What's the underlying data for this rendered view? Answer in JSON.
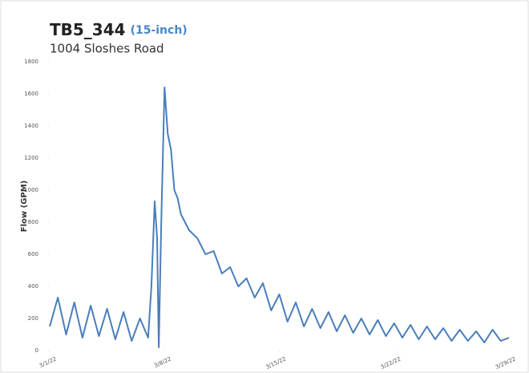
{
  "chart_data": {
    "type": "line",
    "title": "TB5_344",
    "title_note": "(15-inch)",
    "subtitle": "1004 Sloshes Road",
    "y_label": "Flow (GPM)",
    "xlim": [
      0,
      28
    ],
    "xticks": [
      {
        "value": 0,
        "label": "3/1/22"
      },
      {
        "value": 7,
        "label": "3/8/22"
      },
      {
        "value": 14,
        "label": "3/15/22"
      },
      {
        "value": 21,
        "label": "3/22/22"
      },
      {
        "value": 28,
        "label": "3/29/22"
      }
    ],
    "ylim": [
      0,
      1800
    ],
    "yticks": [
      0,
      200,
      400,
      600,
      800,
      1000,
      1200,
      1400,
      1600,
      1800
    ],
    "series": [
      {
        "name": "Flow",
        "color": "#4a7ebb",
        "x": [
          0,
          0.5,
          1,
          1.5,
          2,
          2.5,
          3,
          3.5,
          4,
          4.5,
          5,
          5.5,
          6,
          6.2,
          6.4,
          6.55,
          6.65,
          6.8,
          7,
          7.2,
          7.4,
          7.6,
          7.8,
          8,
          8.5,
          9,
          9.5,
          10,
          10.5,
          11,
          11.5,
          12,
          12.5,
          13,
          13.5,
          14,
          14.5,
          15,
          15.5,
          16,
          16.5,
          17,
          17.5,
          18,
          18.5,
          19,
          19.5,
          20,
          20.5,
          21,
          21.5,
          22,
          22.5,
          23,
          23.5,
          24,
          24.5,
          25,
          25.5,
          26,
          26.5,
          27,
          27.5,
          28
        ],
        "values": [
          150,
          330,
          100,
          300,
          80,
          280,
          90,
          260,
          70,
          240,
          60,
          200,
          80,
          400,
          930,
          700,
          20,
          800,
          1640,
          1350,
          1250,
          1000,
          950,
          850,
          750,
          700,
          600,
          620,
          480,
          520,
          400,
          450,
          330,
          420,
          250,
          350,
          180,
          300,
          150,
          260,
          140,
          240,
          120,
          220,
          110,
          200,
          100,
          190,
          90,
          170,
          80,
          160,
          70,
          150,
          70,
          140,
          60,
          130,
          60,
          120,
          50,
          130,
          60,
          80
        ]
      }
    ]
  }
}
